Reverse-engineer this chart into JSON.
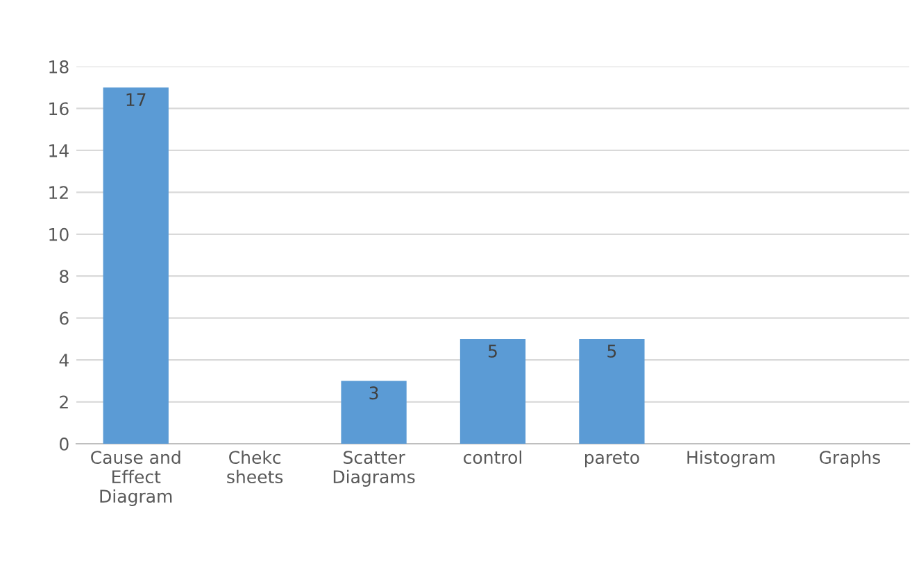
{
  "chart_data": {
    "type": "bar",
    "categories": [
      "Cause and Effect Diagram",
      "Chekc sheets",
      "Scatter Diagrams",
      "control",
      "pareto",
      "Histogram",
      "Graphs"
    ],
    "values": [
      17,
      null,
      3,
      5,
      5,
      null,
      null
    ],
    "color": "#5b9bd5",
    "ylim": [
      0,
      18
    ],
    "yticks": [
      0,
      2,
      4,
      6,
      8,
      10,
      12,
      14,
      16,
      18
    ],
    "grid": "y",
    "data_labels": true
  }
}
